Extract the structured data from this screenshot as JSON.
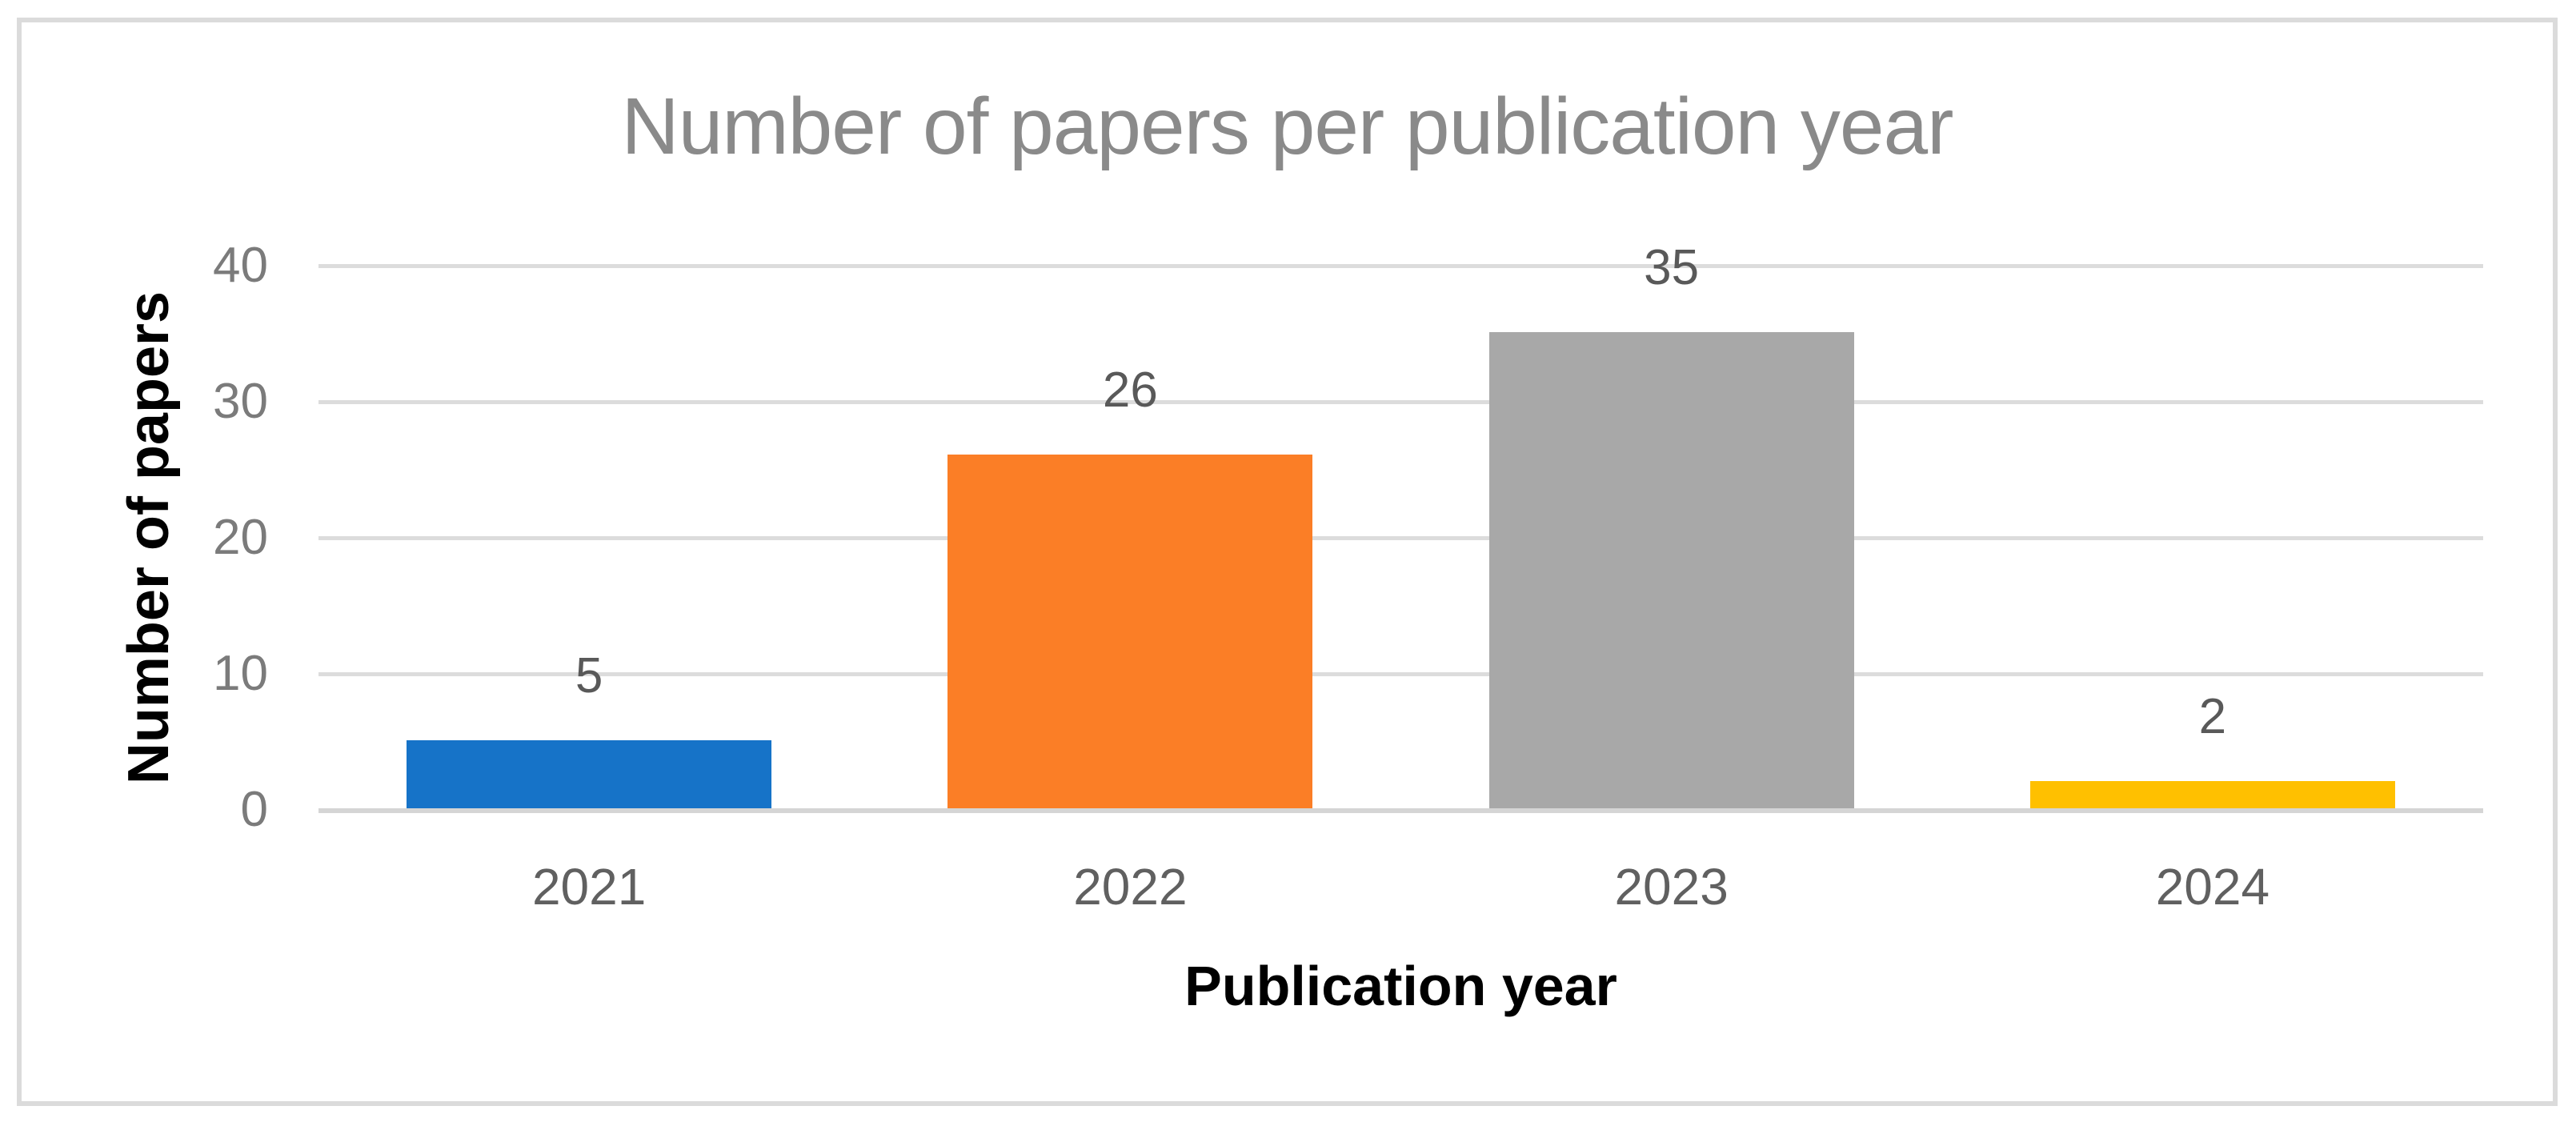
{
  "figure": {
    "background": "#FFFFFF",
    "border_color": "#DBDBDB"
  },
  "chart_data": {
    "type": "bar",
    "title": "Number of papers per publication year",
    "xlabel": "Publication year",
    "ylabel": "Number of papers",
    "categories": [
      "2021",
      "2022",
      "2023",
      "2024"
    ],
    "values": [
      5,
      26,
      35,
      2
    ],
    "data_labels": [
      "5",
      "26",
      "35",
      "2"
    ],
    "series": [
      {
        "name": "Number of papers",
        "values": [
          5,
          26,
          35,
          2
        ]
      }
    ],
    "bar_colors": [
      "#1673C8",
      "#FB7E26",
      "#A8A8A8",
      "#FFC000"
    ],
    "yticks": [
      0,
      10,
      20,
      30,
      40
    ],
    "ylim": [
      0,
      40
    ],
    "grid": "horizontal",
    "legend": "none",
    "colors": {
      "gridline": "#DCDCDC",
      "axis_line": "#D5D5D5",
      "title_text": "#8A8A8A",
      "y_tick_text": "#7B7B7B",
      "category_text": "#606060",
      "data_label_text": "#595959",
      "axis_title_text": "#000000"
    }
  }
}
